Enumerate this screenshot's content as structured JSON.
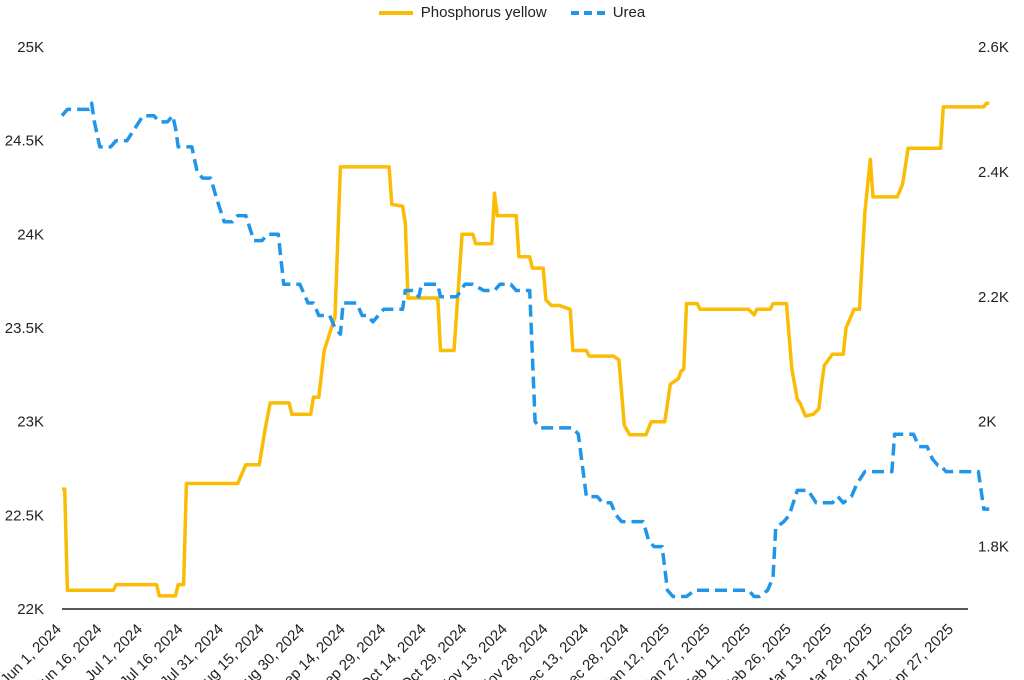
{
  "chart_data": {
    "type": "line",
    "legend_position": "top",
    "grid": false,
    "x_labels": [
      "Jun 1, 2024",
      "Jun 16, 2024",
      "Jul 1, 2024",
      "Jul 16, 2024",
      "Jul 31, 2024",
      "Aug 15, 2024",
      "Aug 30, 2024",
      "Sep 14, 2024",
      "Sep 29, 2024",
      "Oct 14, 2024",
      "Oct 29, 2024",
      "Nov 13, 2024",
      "Nov 28, 2024",
      "Dec 13, 2024",
      "Dec 28, 2024",
      "Jan 12, 2025",
      "Jan 27, 2025",
      "Feb 11, 2025",
      "Feb 26, 2025",
      "Mar 13, 2025",
      "Mar 28, 2025",
      "Apr 12, 2025",
      "Apr 27, 2025"
    ],
    "y_left": {
      "min": 22000,
      "max": 25000,
      "ticks": [
        "22K",
        "22.5K",
        "23K",
        "23.5K",
        "24K",
        "24.5K",
        "25K"
      ]
    },
    "y_right": {
      "min": 1700,
      "max": 2600,
      "ticks": [
        "1.8K",
        "2K",
        "2.2K",
        "2.4K",
        "2.6K"
      ]
    },
    "series": [
      {
        "name": "Phosphorus yellow",
        "axis": "left",
        "color": "#FBBC05",
        "style": "solid",
        "points": [
          [
            "Jun 1, 2024",
            22640
          ],
          [
            "Jun 2, 2024",
            22640
          ],
          [
            "Jun 3, 2024",
            22100
          ],
          [
            "Jun 20, 2024",
            22100
          ],
          [
            "Jun 21, 2024",
            22130
          ],
          [
            "Jul 6, 2024",
            22130
          ],
          [
            "Jul 7, 2024",
            22070
          ],
          [
            "Jul 13, 2024",
            22070
          ],
          [
            "Jul 14, 2024",
            22130
          ],
          [
            "Jul 16, 2024",
            22130
          ],
          [
            "Jul 17, 2024",
            22670
          ],
          [
            "Aug 5, 2024",
            22670
          ],
          [
            "Aug 8, 2024",
            22770
          ],
          [
            "Aug 13, 2024",
            22770
          ],
          [
            "Aug 15, 2024",
            22950
          ],
          [
            "Aug 17, 2024",
            23100
          ],
          [
            "Aug 24, 2024",
            23100
          ],
          [
            "Aug 25, 2024",
            23040
          ],
          [
            "Sep 1, 2024",
            23040
          ],
          [
            "Sep 2, 2024",
            23130
          ],
          [
            "Sep 4, 2024",
            23130
          ],
          [
            "Sep 6, 2024",
            23380
          ],
          [
            "Sep 8, 2024",
            23470
          ],
          [
            "Sep 10, 2024",
            23560
          ],
          [
            "Sep 12, 2024",
            24360
          ],
          [
            "Sep 30, 2024",
            24360
          ],
          [
            "Oct 1, 2024",
            24160
          ],
          [
            "Oct 5, 2024",
            24150
          ],
          [
            "Oct 6, 2024",
            24060
          ],
          [
            "Oct 7, 2024",
            23660
          ],
          [
            "Oct 18, 2024",
            23660
          ],
          [
            "Oct 19, 2024",
            23380
          ],
          [
            "Oct 24, 2024",
            23380
          ],
          [
            "Oct 27, 2024",
            24000
          ],
          [
            "Oct 31, 2024",
            24000
          ],
          [
            "Nov 1, 2024",
            23950
          ],
          [
            "Nov 7, 2024",
            23950
          ],
          [
            "Nov 8, 2024",
            24220
          ],
          [
            "Nov 9, 2024",
            24100
          ],
          [
            "Nov 16, 2024",
            24100
          ],
          [
            "Nov 17, 2024",
            23880
          ],
          [
            "Nov 21, 2024",
            23880
          ],
          [
            "Nov 22, 2024",
            23820
          ],
          [
            "Nov 26, 2024",
            23820
          ],
          [
            "Nov 27, 2024",
            23650
          ],
          [
            "Nov 29, 2024",
            23620
          ],
          [
            "Dec 2, 2024",
            23620
          ],
          [
            "Dec 6, 2024",
            23600
          ],
          [
            "Dec 7, 2024",
            23380
          ],
          [
            "Dec 12, 2024",
            23380
          ],
          [
            "Dec 13, 2024",
            23350
          ],
          [
            "Dec 22, 2024",
            23350
          ],
          [
            "Dec 24, 2024",
            23330
          ],
          [
            "Dec 26, 2024",
            22980
          ],
          [
            "Dec 28, 2024",
            22930
          ],
          [
            "Jan 3, 2025",
            22930
          ],
          [
            "Jan 5, 2025",
            23000
          ],
          [
            "Jan 10, 2025",
            23000
          ],
          [
            "Jan 12, 2025",
            23200
          ],
          [
            "Jan 15, 2025",
            23230
          ],
          [
            "Jan 16, 2025",
            23270
          ],
          [
            "Jan 17, 2025",
            23280
          ],
          [
            "Jan 18, 2025",
            23630
          ],
          [
            "Jan 22, 2025",
            23630
          ],
          [
            "Jan 23, 2025",
            23600
          ],
          [
            "Feb 10, 2025",
            23600
          ],
          [
            "Feb 12, 2025",
            23570
          ],
          [
            "Feb 13, 2025",
            23600
          ],
          [
            "Feb 18, 2025",
            23600
          ],
          [
            "Feb 19, 2025",
            23630
          ],
          [
            "Feb 24, 2025",
            23630
          ],
          [
            "Feb 25, 2025",
            23450
          ],
          [
            "Feb 26, 2025",
            23280
          ],
          [
            "Feb 28, 2025",
            23120
          ],
          [
            "Mar 1, 2025",
            23100
          ],
          [
            "Mar 3, 2025",
            23030
          ],
          [
            "Mar 6, 2025",
            23040
          ],
          [
            "Mar 8, 2025",
            23070
          ],
          [
            "Mar 9, 2025",
            23200
          ],
          [
            "Mar 10, 2025",
            23300
          ],
          [
            "Mar 13, 2025",
            23360
          ],
          [
            "Mar 17, 2025",
            23360
          ],
          [
            "Mar 18, 2025",
            23500
          ],
          [
            "Mar 21, 2025",
            23600
          ],
          [
            "Mar 23, 2025",
            23600
          ],
          [
            "Mar 25, 2025",
            24120
          ],
          [
            "Mar 27, 2025",
            24400
          ],
          [
            "Mar 28, 2025",
            24200
          ],
          [
            "Apr 6, 2025",
            24200
          ],
          [
            "Apr 8, 2025",
            24270
          ],
          [
            "Apr 10, 2025",
            24460
          ],
          [
            "Apr 22, 2025",
            24460
          ],
          [
            "Apr 23, 2025",
            24680
          ],
          [
            "May 8, 2025",
            24680
          ],
          [
            "May 9, 2025",
            24700
          ],
          [
            "May 10, 2025",
            24700
          ]
        ]
      },
      {
        "name": "Urea",
        "axis": "right",
        "color": "#2196E8",
        "style": "dashed",
        "points": [
          [
            "Jun 1, 2024",
            2490
          ],
          [
            "Jun 3, 2024",
            2500
          ],
          [
            "Jun 11, 2024",
            2500
          ],
          [
            "Jun 12, 2024",
            2510
          ],
          [
            "Jun 13, 2024",
            2480
          ],
          [
            "Jun 15, 2024",
            2440
          ],
          [
            "Jun 19, 2024",
            2440
          ],
          [
            "Jun 21, 2024",
            2450
          ],
          [
            "Jun 25, 2024",
            2450
          ],
          [
            "Jun 28, 2024",
            2470
          ],
          [
            "Jul 1, 2024",
            2490
          ],
          [
            "Jul 5, 2024",
            2490
          ],
          [
            "Jul 7, 2024",
            2480
          ],
          [
            "Jul 10, 2024",
            2480
          ],
          [
            "Jul 12, 2024",
            2490
          ],
          [
            "Jul 13, 2024",
            2470
          ],
          [
            "Jul 14, 2024",
            2440
          ],
          [
            "Jul 19, 2024",
            2440
          ],
          [
            "Jul 21, 2024",
            2400
          ],
          [
            "Jul 23, 2024",
            2390
          ],
          [
            "Jul 26, 2024",
            2390
          ],
          [
            "Jul 28, 2024",
            2360
          ],
          [
            "Jul 31, 2024",
            2320
          ],
          [
            "Aug 3, 2024",
            2320
          ],
          [
            "Aug 5, 2024",
            2330
          ],
          [
            "Aug 8, 2024",
            2330
          ],
          [
            "Aug 11, 2024",
            2290
          ],
          [
            "Aug 14, 2024",
            2290
          ],
          [
            "Aug 16, 2024",
            2300
          ],
          [
            "Aug 20, 2024",
            2300
          ],
          [
            "Aug 22, 2024",
            2220
          ],
          [
            "Aug 28, 2024",
            2220
          ],
          [
            "Aug 31, 2024",
            2190
          ],
          [
            "Sep 2, 2024",
            2190
          ],
          [
            "Sep 4, 2024",
            2170
          ],
          [
            "Sep 8, 2024",
            2170
          ],
          [
            "Sep 10, 2024",
            2150
          ],
          [
            "Sep 12, 2024",
            2140
          ],
          [
            "Sep 13, 2024",
            2190
          ],
          [
            "Sep 18, 2024",
            2190
          ],
          [
            "Sep 20, 2024",
            2170
          ],
          [
            "Sep 22, 2024",
            2170
          ],
          [
            "Sep 24, 2024",
            2160
          ],
          [
            "Sep 26, 2024",
            2170
          ],
          [
            "Sep 28, 2024",
            2180
          ],
          [
            "Oct 5, 2024",
            2180
          ],
          [
            "Oct 6, 2024",
            2210
          ],
          [
            "Oct 9, 2024",
            2210
          ],
          [
            "Oct 11, 2024",
            2200
          ],
          [
            "Oct 12, 2024",
            2220
          ],
          [
            "Oct 18, 2024",
            2220
          ],
          [
            "Oct 19, 2024",
            2200
          ],
          [
            "Oct 23, 2024",
            2200
          ],
          [
            "Oct 25, 2024",
            2200
          ],
          [
            "Oct 28, 2024",
            2220
          ],
          [
            "Oct 31, 2024",
            2220
          ],
          [
            "Nov 4, 2024",
            2210
          ],
          [
            "Nov 8, 2024",
            2210
          ],
          [
            "Nov 10, 2024",
            2220
          ],
          [
            "Nov 14, 2024",
            2220
          ],
          [
            "Nov 16, 2024",
            2210
          ],
          [
            "Nov 21, 2024",
            2210
          ],
          [
            "Nov 23, 2024",
            2000
          ],
          [
            "Nov 25, 2024",
            1990
          ],
          [
            "Nov 27, 2024",
            1990
          ],
          [
            "Nov 29, 2024",
            1990
          ],
          [
            "Dec 2, 2024",
            1990
          ],
          [
            "Dec 7, 2024",
            1990
          ],
          [
            "Dec 9, 2024",
            1980
          ],
          [
            "Dec 12, 2024",
            1880
          ],
          [
            "Dec 16, 2024",
            1880
          ],
          [
            "Dec 18, 2024",
            1870
          ],
          [
            "Dec 21, 2024",
            1870
          ],
          [
            "Dec 23, 2024",
            1850
          ],
          [
            "Dec 25, 2024",
            1840
          ],
          [
            "Dec 28, 2024",
            1840
          ],
          [
            "Jan 2, 2025",
            1840
          ],
          [
            "Jan 4, 2025",
            1810
          ],
          [
            "Jan 6, 2025",
            1800
          ],
          [
            "Jan 9, 2025",
            1800
          ],
          [
            "Jan 11, 2025",
            1730
          ],
          [
            "Jan 13, 2025",
            1720
          ],
          [
            "Jan 18, 2025",
            1720
          ],
          [
            "Jan 21, 2025",
            1730
          ],
          [
            "Jan 24, 2025",
            1730
          ],
          [
            "Feb 10, 2025",
            1730
          ],
          [
            "Feb 12, 2025",
            1720
          ],
          [
            "Feb 14, 2025",
            1720
          ],
          [
            "Feb 17, 2025",
            1730
          ],
          [
            "Feb 19, 2025",
            1750
          ],
          [
            "Feb 20, 2025",
            1830
          ],
          [
            "Feb 23, 2025",
            1840
          ],
          [
            "Feb 25, 2025",
            1850
          ],
          [
            "Feb 28, 2025",
            1890
          ],
          [
            "Mar 4, 2025",
            1890
          ],
          [
            "Mar 7, 2025",
            1870
          ],
          [
            "Mar 13, 2025",
            1870
          ],
          [
            "Mar 15, 2025",
            1880
          ],
          [
            "Mar 17, 2025",
            1870
          ],
          [
            "Mar 20, 2025",
            1880
          ],
          [
            "Mar 22, 2025",
            1900
          ],
          [
            "Mar 25, 2025",
            1920
          ],
          [
            "Apr 2, 2025",
            1920
          ],
          [
            "Apr 4, 2025",
            1920
          ],
          [
            "Apr 5, 2025",
            1980
          ],
          [
            "Apr 7, 2025",
            1980
          ],
          [
            "Apr 12, 2025",
            1980
          ],
          [
            "Apr 14, 2025",
            1960
          ],
          [
            "Apr 17, 2025",
            1960
          ],
          [
            "Apr 19, 2025",
            1940
          ],
          [
            "Apr 21, 2025",
            1930
          ],
          [
            "Apr 22, 2025",
            1930
          ],
          [
            "Apr 24, 2025",
            1920
          ],
          [
            "Apr 29, 2025",
            1920
          ],
          [
            "May 6, 2025",
            1920
          ],
          [
            "May 8, 2025",
            1860
          ],
          [
            "May 10, 2025",
            1860
          ]
        ]
      }
    ]
  }
}
